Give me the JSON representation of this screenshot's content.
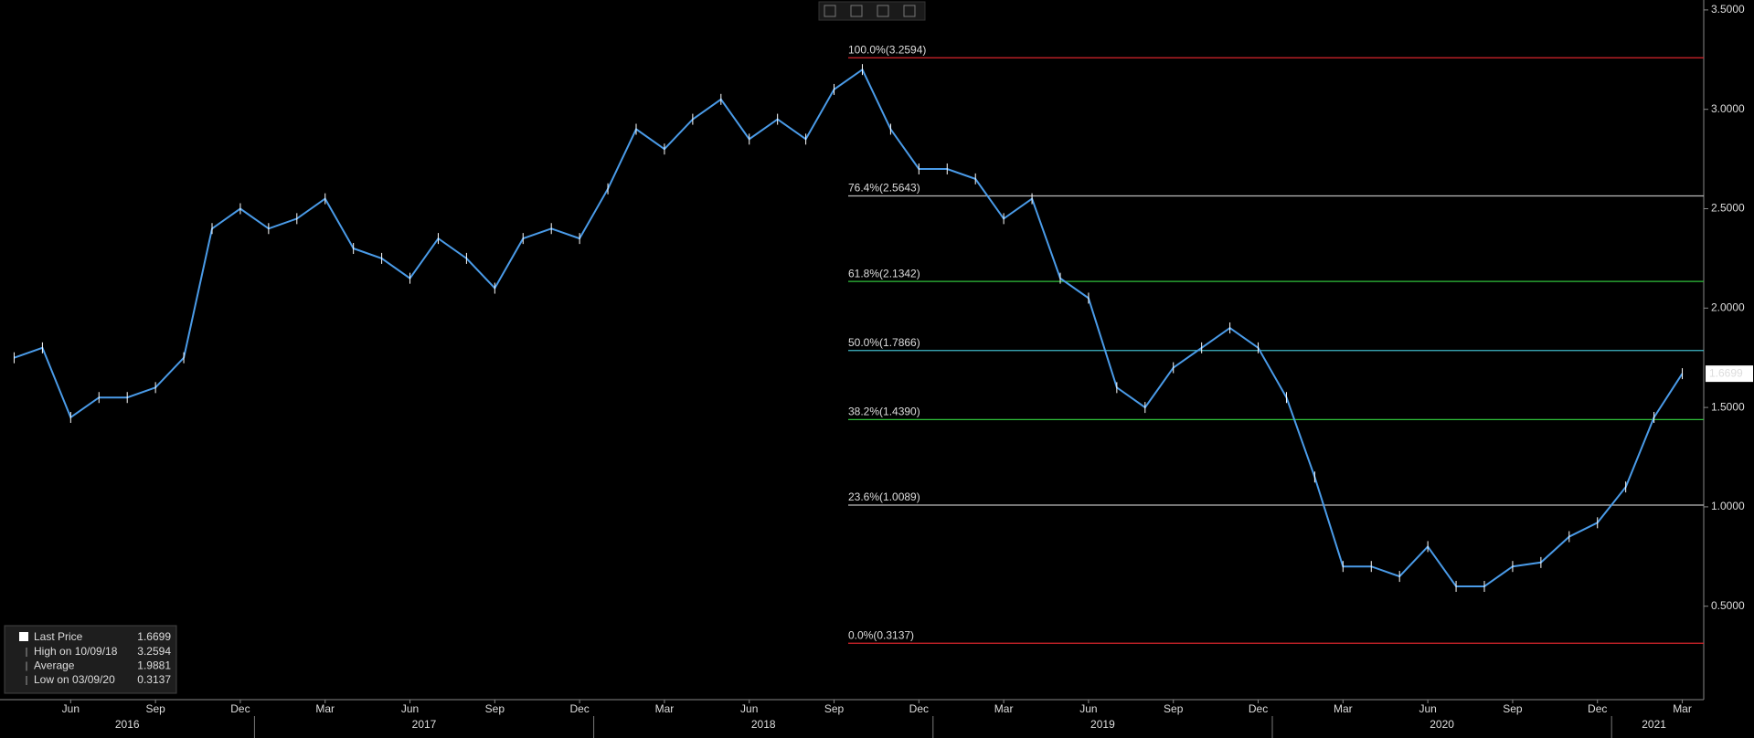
{
  "chart_data": {
    "type": "line",
    "categories": [
      null,
      null,
      "Jun",
      null,
      null,
      "Sep",
      null,
      null,
      "Dec",
      null,
      null,
      "Mar",
      null,
      null,
      "Jun",
      null,
      null,
      "Sep",
      null,
      null,
      "Dec",
      null,
      null,
      "Mar",
      null,
      null,
      "Jun",
      null,
      null,
      "Sep",
      null,
      null,
      "Dec",
      null,
      null,
      "Mar",
      null,
      null,
      "Jun",
      null,
      null,
      "Sep",
      null,
      null,
      "Dec",
      null,
      null,
      "Mar",
      null,
      null,
      "Jun",
      null,
      null,
      "Sep",
      null,
      null,
      "Dec",
      null,
      null,
      "Mar"
    ],
    "years": [
      "2016",
      "2017",
      "2018",
      "2019",
      "2020",
      "2021"
    ],
    "series": [
      {
        "name": "Last Price",
        "color": "#4a9be8",
        "values": [
          1.75,
          1.8,
          1.45,
          1.55,
          1.55,
          1.6,
          1.75,
          2.4,
          2.5,
          2.4,
          2.45,
          2.55,
          2.3,
          2.25,
          2.15,
          2.35,
          2.25,
          2.1,
          2.35,
          2.4,
          2.35,
          2.6,
          2.9,
          2.8,
          2.95,
          3.05,
          2.85,
          2.95,
          2.85,
          3.1,
          3.2,
          2.9,
          2.7,
          2.7,
          2.65,
          2.45,
          2.55,
          2.15,
          2.05,
          1.6,
          1.5,
          1.7,
          1.8,
          1.9,
          1.8,
          1.55,
          1.15,
          0.7,
          0.7,
          0.65,
          0.8,
          0.6,
          0.6,
          0.7,
          0.72,
          0.85,
          0.92,
          1.1,
          1.45,
          1.67
        ]
      }
    ],
    "ylim": [
      0.03,
      3.55
    ],
    "yticks": [
      {
        "value": 0.5,
        "label": "0.5000"
      },
      {
        "value": 1.0,
        "label": "1.0000"
      },
      {
        "value": 1.5,
        "label": "1.5000"
      },
      {
        "value": 2.0,
        "label": "2.0000"
      },
      {
        "value": 2.5,
        "label": "2.5000"
      },
      {
        "value": 3.0,
        "label": "3.0000"
      },
      {
        "value": 3.5,
        "label": "3.5000"
      }
    ],
    "fib_levels": [
      {
        "label": "100.0%(3.2594)",
        "value": 3.2594,
        "color": "#d8242c"
      },
      {
        "label": "76.4%(2.5643)",
        "value": 2.5643,
        "color": "#bbbbbb"
      },
      {
        "label": "61.8%(2.1342)",
        "value": 2.1342,
        "color": "#2fbf3a"
      },
      {
        "label": "50.0%(1.7866)",
        "value": 1.7866,
        "color": "#3fb8c8"
      },
      {
        "label": "38.2%(1.4390)",
        "value": 1.439,
        "color": "#2fbf3a"
      },
      {
        "label": "23.6%(1.0089)",
        "value": 1.0089,
        "color": "#bbbbbb"
      },
      {
        "label": "0.0%(0.3137)",
        "value": 0.3137,
        "color": "#d8242c"
      }
    ],
    "last_price": 1.6699,
    "stats": [
      {
        "label": "High on 10/09/18",
        "value": 3.2594
      },
      {
        "label": "Average",
        "value": 1.9881
      },
      {
        "label": "Low on 03/09/20",
        "value": 0.3137
      }
    ]
  }
}
